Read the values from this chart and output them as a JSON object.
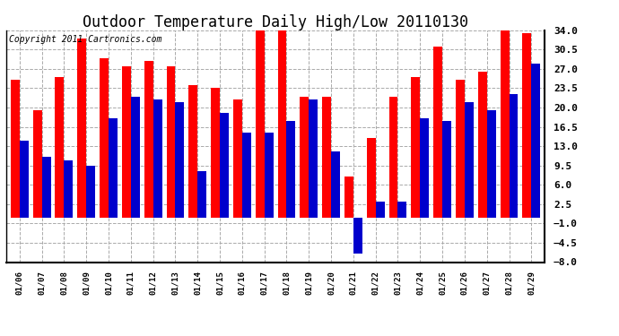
{
  "title": "Outdoor Temperature Daily High/Low 20110130",
  "copyright": "Copyright 2011 Cartronics.com",
  "dates": [
    "01/06",
    "01/07",
    "01/08",
    "01/09",
    "01/10",
    "01/11",
    "01/12",
    "01/13",
    "01/14",
    "01/15",
    "01/16",
    "01/17",
    "01/18",
    "01/19",
    "01/20",
    "01/21",
    "01/22",
    "01/23",
    "01/24",
    "01/25",
    "01/26",
    "01/27",
    "01/28",
    "01/29"
  ],
  "highs": [
    25.0,
    19.5,
    25.5,
    32.5,
    29.0,
    27.5,
    28.5,
    27.5,
    24.0,
    23.5,
    21.5,
    34.0,
    34.0,
    22.0,
    22.0,
    7.5,
    14.5,
    22.0,
    25.5,
    31.0,
    25.0,
    26.5,
    35.0,
    33.5
  ],
  "lows": [
    14.0,
    11.0,
    10.5,
    9.5,
    18.0,
    22.0,
    21.5,
    21.0,
    8.5,
    19.0,
    15.5,
    15.5,
    17.5,
    21.5,
    12.0,
    -6.5,
    3.0,
    3.0,
    18.0,
    17.5,
    21.0,
    19.5,
    22.5,
    28.0
  ],
  "high_color": "#ff0000",
  "low_color": "#0000cc",
  "bg_color": "#ffffff",
  "grid_color": "#aaaaaa",
  "ylim": [
    -8.0,
    34.0
  ],
  "yticks": [
    -8.0,
    -4.5,
    -1.0,
    2.5,
    6.0,
    9.5,
    13.0,
    16.5,
    20.0,
    23.5,
    27.0,
    30.5,
    34.0
  ],
  "title_fontsize": 12,
  "copyright_fontsize": 7,
  "bar_width": 0.4
}
